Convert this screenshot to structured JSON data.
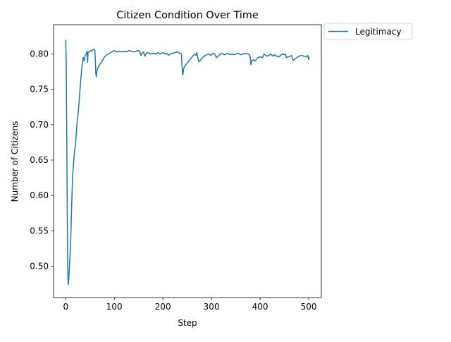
{
  "chart_data": {
    "type": "line",
    "title": "Citizen Condition Over Time",
    "xlabel": "Step",
    "ylabel": "Number of Citizens",
    "xlim": [
      -25.05,
      526.05
    ],
    "ylim": [
      0.4555,
      0.8415
    ],
    "xticks": [
      0,
      100,
      200,
      300,
      400,
      500
    ],
    "yticks": [
      0.5,
      0.55,
      0.6,
      0.65,
      0.7,
      0.75,
      0.8
    ],
    "xtick_labels": [
      "0",
      "100",
      "200",
      "300",
      "400",
      "500"
    ],
    "ytick_labels": [
      "0.50",
      "0.55",
      "0.60",
      "0.65",
      "0.70",
      "0.75",
      "0.80"
    ],
    "grid": false,
    "legend": {
      "placement": "outside-top-right"
    },
    "series": [
      {
        "name": "Legitimacy",
        "color": "#1f77b4",
        "points": [
          [
            0,
            0.82
          ],
          [
            1,
            0.79
          ],
          [
            2,
            0.7
          ],
          [
            3,
            0.59
          ],
          [
            4,
            0.5
          ],
          [
            5,
            0.474
          ],
          [
            6,
            0.478
          ],
          [
            8,
            0.505
          ],
          [
            10,
            0.53
          ],
          [
            12,
            0.58
          ],
          [
            14,
            0.625
          ],
          [
            16,
            0.645
          ],
          [
            18,
            0.662
          ],
          [
            20,
            0.672
          ],
          [
            22,
            0.69
          ],
          [
            24,
            0.708
          ],
          [
            26,
            0.718
          ],
          [
            28,
            0.738
          ],
          [
            30,
            0.755
          ],
          [
            32,
            0.772
          ],
          [
            34,
            0.785
          ],
          [
            36,
            0.795
          ],
          [
            38,
            0.79
          ],
          [
            40,
            0.798
          ],
          [
            42,
            0.8
          ],
          [
            44,
            0.804
          ],
          [
            45,
            0.788
          ],
          [
            46,
            0.802
          ],
          [
            48,
            0.803
          ],
          [
            50,
            0.804
          ],
          [
            52,
            0.805
          ],
          [
            54,
            0.804
          ],
          [
            56,
            0.806
          ],
          [
            58,
            0.807
          ],
          [
            60,
            0.805
          ],
          [
            61,
            0.79
          ],
          [
            62,
            0.772
          ],
          [
            63,
            0.768
          ],
          [
            64,
            0.775
          ],
          [
            66,
            0.78
          ],
          [
            70,
            0.785
          ],
          [
            75,
            0.79
          ],
          [
            80,
            0.796
          ],
          [
            85,
            0.799
          ],
          [
            90,
            0.801
          ],
          [
            95,
            0.803
          ],
          [
            100,
            0.805
          ],
          [
            105,
            0.803
          ],
          [
            110,
            0.804
          ],
          [
            115,
            0.803
          ],
          [
            120,
            0.804
          ],
          [
            125,
            0.803
          ],
          [
            130,
            0.805
          ],
          [
            135,
            0.804
          ],
          [
            140,
            0.803
          ],
          [
            145,
            0.804
          ],
          [
            150,
            0.805
          ],
          [
            152,
            0.804
          ],
          [
            155,
            0.798
          ],
          [
            157,
            0.801
          ],
          [
            160,
            0.803
          ],
          [
            163,
            0.797
          ],
          [
            166,
            0.801
          ],
          [
            170,
            0.802
          ],
          [
            175,
            0.8
          ],
          [
            180,
            0.801
          ],
          [
            185,
            0.8
          ],
          [
            190,
            0.802
          ],
          [
            195,
            0.8
          ],
          [
            200,
            0.802
          ],
          [
            205,
            0.8
          ],
          [
            208,
            0.801
          ],
          [
            212,
            0.798
          ],
          [
            215,
            0.8
          ],
          [
            220,
            0.801
          ],
          [
            225,
            0.802
          ],
          [
            230,
            0.803
          ],
          [
            235,
            0.801
          ],
          [
            238,
            0.8
          ],
          [
            240,
            0.775
          ],
          [
            241,
            0.77
          ],
          [
            243,
            0.78
          ],
          [
            246,
            0.784
          ],
          [
            250,
            0.787
          ],
          [
            255,
            0.792
          ],
          [
            260,
            0.796
          ],
          [
            265,
            0.8
          ],
          [
            268,
            0.798
          ],
          [
            270,
            0.802
          ],
          [
            272,
            0.795
          ],
          [
            274,
            0.789
          ],
          [
            277,
            0.791
          ],
          [
            280,
            0.794
          ],
          [
            285,
            0.797
          ],
          [
            290,
            0.799
          ],
          [
            295,
            0.8
          ],
          [
            298,
            0.798
          ],
          [
            300,
            0.799
          ],
          [
            303,
            0.801
          ],
          [
            307,
            0.8
          ],
          [
            310,
            0.795
          ],
          [
            314,
            0.797
          ],
          [
            318,
            0.8
          ],
          [
            322,
            0.801
          ],
          [
            326,
            0.799
          ],
          [
            330,
            0.8
          ],
          [
            334,
            0.801
          ],
          [
            338,
            0.799
          ],
          [
            342,
            0.8
          ],
          [
            346,
            0.799
          ],
          [
            350,
            0.8
          ],
          [
            355,
            0.801
          ],
          [
            360,
            0.799
          ],
          [
            365,
            0.8
          ],
          [
            370,
            0.801
          ],
          [
            375,
            0.8
          ],
          [
            378,
            0.799
          ],
          [
            380,
            0.795
          ],
          [
            381,
            0.785
          ],
          [
            383,
            0.79
          ],
          [
            386,
            0.792
          ],
          [
            390,
            0.79
          ],
          [
            393,
            0.793
          ],
          [
            396,
            0.795
          ],
          [
            400,
            0.796
          ],
          [
            405,
            0.795
          ],
          [
            408,
            0.8
          ],
          [
            410,
            0.799
          ],
          [
            414,
            0.797
          ],
          [
            418,
            0.798
          ],
          [
            422,
            0.8
          ],
          [
            426,
            0.797
          ],
          [
            430,
            0.799
          ],
          [
            434,
            0.797
          ],
          [
            438,
            0.796
          ],
          [
            442,
            0.798
          ],
          [
            446,
            0.8
          ],
          [
            450,
            0.799
          ],
          [
            452,
            0.8
          ],
          [
            454,
            0.795
          ],
          [
            458,
            0.796
          ],
          [
            462,
            0.797
          ],
          [
            465,
            0.798
          ],
          [
            468,
            0.791
          ],
          [
            472,
            0.793
          ],
          [
            476,
            0.795
          ],
          [
            480,
            0.797
          ],
          [
            485,
            0.798
          ],
          [
            490,
            0.797
          ],
          [
            495,
            0.796
          ],
          [
            498,
            0.798
          ],
          [
            500,
            0.792
          ],
          [
            501,
            0.796
          ]
        ]
      }
    ]
  }
}
